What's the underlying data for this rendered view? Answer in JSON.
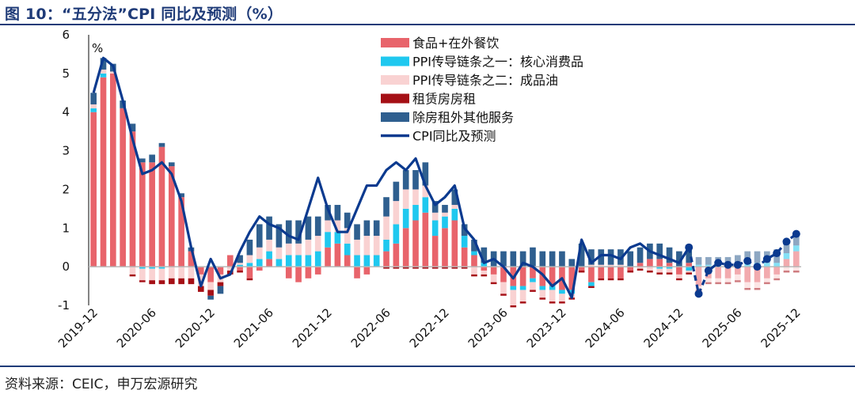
{
  "header": {
    "title": "图 10：“五分法”CPI 同比及预测（%）"
  },
  "footer": {
    "source": "资料来源：CEIC，申万宏源研究"
  },
  "chart_data": {
    "type": "bar",
    "stacked": true,
    "title": "图 10：“五分法”CPI 同比及预测（%）",
    "ylabel": "%",
    "xlabel": "",
    "ylim": [
      -1,
      6
    ],
    "yticks": [
      -1,
      0,
      1,
      2,
      3,
      4,
      5,
      6
    ],
    "forecast_start": "2025-02",
    "x": [
      "2019-12",
      "2020-01",
      "2020-02",
      "2020-03",
      "2020-04",
      "2020-05",
      "2020-06",
      "2020-07",
      "2020-08",
      "2020-09",
      "2020-10",
      "2020-11",
      "2020-12",
      "2021-01",
      "2021-02",
      "2021-03",
      "2021-04",
      "2021-05",
      "2021-06",
      "2021-07",
      "2021-08",
      "2021-09",
      "2021-10",
      "2021-11",
      "2021-12",
      "2022-01",
      "2022-02",
      "2022-03",
      "2022-04",
      "2022-05",
      "2022-06",
      "2022-07",
      "2022-08",
      "2022-09",
      "2022-10",
      "2022-11",
      "2022-12",
      "2023-01",
      "2023-02",
      "2023-03",
      "2023-04",
      "2023-05",
      "2023-06",
      "2023-07",
      "2023-08",
      "2023-09",
      "2023-10",
      "2023-11",
      "2023-12",
      "2024-01",
      "2024-02",
      "2024-03",
      "2024-04",
      "2024-05",
      "2024-06",
      "2024-07",
      "2024-08",
      "2024-09",
      "2024-10",
      "2024-11",
      "2024-12",
      "2025-01",
      "2025-02",
      "2025-03",
      "2025-04",
      "2025-05",
      "2025-06",
      "2025-07",
      "2025-08",
      "2025-09",
      "2025-10",
      "2025-11",
      "2025-12"
    ],
    "xtick_labels": [
      "2019-12",
      "2020-06",
      "2020-12",
      "2021-06",
      "2021-12",
      "2022-06",
      "2022-12",
      "2023-06",
      "2023-12",
      "2024-06",
      "2024-12",
      "2025-06",
      "2025-12"
    ],
    "series": [
      {
        "name": "食品+在外餐饮",
        "color": "#e8646b",
        "values": [
          4.0,
          4.9,
          5.0,
          4.1,
          3.5,
          2.7,
          2.7,
          3.1,
          2.6,
          1.8,
          0.4,
          -0.2,
          -0.4,
          -0.2,
          0.3,
          -0.1,
          -0.3,
          -0.1,
          0.2,
          0.0,
          -0.3,
          -0.4,
          -0.3,
          -0.2,
          0.5,
          0.6,
          0.3,
          -0.3,
          -0.2,
          0.0,
          0.4,
          0.6,
          1.0,
          1.2,
          1.4,
          0.8,
          1.0,
          1.2,
          0.5,
          0.3,
          -0.1,
          -0.2,
          -0.4,
          -0.5,
          -0.5,
          -0.3,
          -0.5,
          -0.5,
          -0.6,
          -0.6,
          -0.1,
          -0.4,
          -0.3,
          -0.3,
          -0.3,
          -0.1,
          0.1,
          0.2,
          0.2,
          0.1,
          -0.2,
          0.1,
          -0.5,
          -0.3,
          -0.3,
          -0.3,
          -0.2,
          -0.4,
          -0.4,
          -0.3,
          -0.2,
          0.2,
          0.4
        ]
      },
      {
        "name": "PPI传导链条之一：核心消费品",
        "color": "#1fc8ef",
        "values": [
          0.1,
          0.1,
          0.0,
          0.0,
          0.0,
          -0.05,
          -0.05,
          -0.05,
          0.0,
          0.0,
          0.0,
          0.0,
          0.0,
          0.0,
          0.0,
          0.05,
          0.1,
          0.2,
          0.2,
          0.2,
          0.3,
          0.3,
          0.3,
          0.4,
          0.4,
          0.3,
          0.3,
          0.3,
          0.3,
          0.3,
          0.3,
          0.5,
          0.5,
          0.4,
          0.4,
          0.4,
          0.3,
          0.3,
          0.3,
          0.1,
          0.1,
          0.0,
          0.0,
          -0.1,
          -0.1,
          -0.1,
          -0.1,
          -0.1,
          -0.1,
          -0.1,
          0.0,
          -0.1,
          0.0,
          0.0,
          0.0,
          0.0,
          0.0,
          0.0,
          -0.05,
          -0.05,
          0.0,
          -0.1,
          0.05,
          0.05,
          0.05,
          0.05,
          0.1,
          0.1,
          0.1,
          0.1,
          0.1,
          0.15,
          0.15
        ]
      },
      {
        "name": "PPI传导链条之二：成品油",
        "color": "#f9d2d2",
        "values": [
          0.1,
          0.1,
          0.05,
          0.0,
          -0.2,
          -0.3,
          -0.3,
          -0.3,
          -0.3,
          -0.3,
          -0.3,
          -0.3,
          -0.2,
          -0.2,
          -0.1,
          0.05,
          0.2,
          0.3,
          0.3,
          0.3,
          0.3,
          0.3,
          0.4,
          0.4,
          0.3,
          0.3,
          0.4,
          0.4,
          0.5,
          0.5,
          0.6,
          0.6,
          0.5,
          0.4,
          0.3,
          0.2,
          0.1,
          0.1,
          0.0,
          -0.2,
          -0.1,
          -0.2,
          -0.3,
          -0.4,
          -0.3,
          -0.2,
          -0.2,
          -0.3,
          -0.2,
          -0.1,
          0.0,
          0.05,
          0.05,
          0.05,
          0.05,
          0.0,
          -0.05,
          -0.1,
          -0.1,
          -0.1,
          -0.1,
          -0.05,
          -0.1,
          -0.1,
          -0.1,
          -0.1,
          -0.15,
          -0.15,
          -0.15,
          -0.1,
          -0.1,
          -0.1,
          -0.1
        ]
      },
      {
        "name": "租赁房房租",
        "color": "#a50f15",
        "values": [
          0.0,
          0.0,
          0.0,
          0.0,
          -0.05,
          -0.05,
          -0.1,
          -0.1,
          -0.15,
          -0.15,
          -0.15,
          -0.15,
          -0.15,
          -0.1,
          -0.1,
          -0.05,
          -0.05,
          0.0,
          0.0,
          0.0,
          0.0,
          0.0,
          0.0,
          0.0,
          0.0,
          0.0,
          0.0,
          0.0,
          0.0,
          0.0,
          -0.05,
          -0.05,
          -0.05,
          -0.05,
          -0.05,
          -0.05,
          -0.05,
          -0.05,
          -0.05,
          -0.05,
          -0.05,
          -0.05,
          -0.05,
          -0.05,
          -0.05,
          -0.05,
          -0.05,
          -0.05,
          -0.05,
          -0.05,
          -0.05,
          -0.05,
          -0.05,
          -0.05,
          -0.05,
          -0.05,
          -0.05,
          -0.05,
          -0.05,
          -0.05,
          -0.05,
          -0.05,
          -0.05,
          -0.05,
          -0.05,
          -0.05,
          -0.05,
          -0.05,
          -0.05,
          -0.05,
          -0.05,
          -0.05,
          -0.05
        ]
      },
      {
        "name": "除房租外其他服务",
        "color": "#2f5f8f",
        "values": [
          0.3,
          0.3,
          0.2,
          0.2,
          0.2,
          0.1,
          0.2,
          0.1,
          0.1,
          0.1,
          0.1,
          0.0,
          -0.1,
          -0.2,
          0.0,
          0.2,
          0.4,
          0.6,
          0.6,
          0.6,
          0.6,
          0.6,
          0.6,
          0.5,
          0.4,
          0.4,
          0.4,
          0.4,
          0.4,
          0.4,
          0.5,
          0.5,
          0.5,
          0.5,
          0.6,
          0.3,
          0.2,
          0.4,
          0.3,
          0.3,
          0.4,
          0.4,
          0.4,
          0.4,
          0.4,
          0.5,
          0.4,
          0.4,
          0.4,
          0.2,
          0.6,
          0.4,
          0.4,
          0.4,
          0.4,
          0.4,
          0.4,
          0.4,
          0.4,
          0.4,
          0.4,
          0.4,
          0.2,
          0.2,
          0.2,
          0.2,
          0.2,
          0.3,
          0.3,
          0.3,
          0.35,
          0.35,
          0.35
        ]
      },
      {
        "name": "CPI同比及预测",
        "color": "#0b3a8f",
        "type": "line",
        "values": [
          4.5,
          5.4,
          5.2,
          4.3,
          3.3,
          2.4,
          2.5,
          2.7,
          2.4,
          1.7,
          0.5,
          -0.5,
          0.2,
          -0.3,
          -0.2,
          0.4,
          0.9,
          1.3,
          1.1,
          1.0,
          0.8,
          0.7,
          1.5,
          2.3,
          1.5,
          0.9,
          0.9,
          1.5,
          2.1,
          2.1,
          2.5,
          2.7,
          2.5,
          2.8,
          2.1,
          1.6,
          1.8,
          2.1,
          1.0,
          0.7,
          0.1,
          0.2,
          0.0,
          -0.3,
          0.1,
          0.0,
          -0.2,
          -0.5,
          -0.3,
          -0.8,
          0.7,
          0.1,
          0.3,
          0.3,
          0.2,
          0.5,
          0.6,
          0.4,
          0.3,
          0.2,
          0.1,
          0.5,
          -0.7,
          -0.1,
          0.1,
          0.05,
          0.05,
          0.15,
          0.0,
          0.2,
          0.35,
          0.65,
          0.85
        ]
      }
    ]
  }
}
